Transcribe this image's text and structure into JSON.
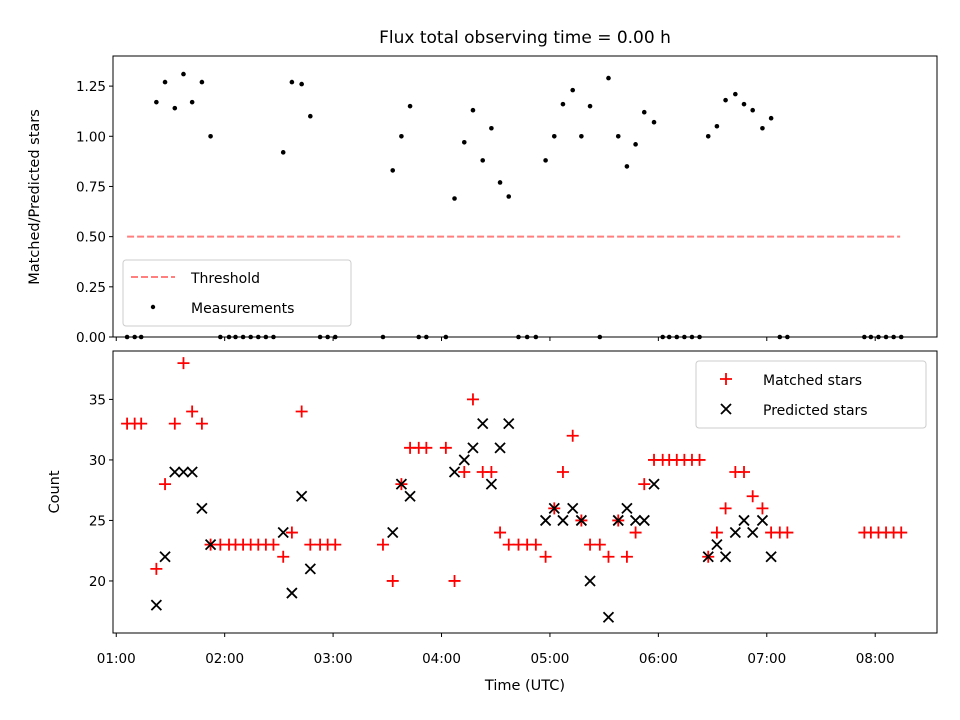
{
  "chart_data": [
    {
      "type": "scatter",
      "title": "Flux total observing time = 0.00 h",
      "xlabel": "",
      "ylabel": "Matched/Predicted stars",
      "xlim": [
        0.97,
        8.57
      ],
      "ylim": [
        0,
        1.4
      ],
      "yticks": [
        0.0,
        0.25,
        0.5,
        0.75,
        1.0,
        1.25
      ],
      "ytick_labels": [
        "0.00",
        "0.25",
        "0.50",
        "0.75",
        "1.00",
        "1.25"
      ],
      "legend_position": "lower-left",
      "threshold": {
        "name": "Threshold",
        "value": 0.5,
        "x_range": [
          1.1,
          8.23
        ],
        "color": "#ff7f7f"
      },
      "series": [
        {
          "name": "Measurements",
          "color": "#000000",
          "points": [
            [
              1.1,
              0
            ],
            [
              1.17,
              0
            ],
            [
              1.23,
              0
            ],
            [
              1.37,
              1.17
            ],
            [
              1.45,
              1.27
            ],
            [
              1.54,
              1.14
            ],
            [
              1.62,
              1.31
            ],
            [
              1.7,
              1.17
            ],
            [
              1.79,
              1.27
            ],
            [
              1.87,
              1.0
            ],
            [
              1.96,
              0
            ],
            [
              2.04,
              0
            ],
            [
              2.1,
              0
            ],
            [
              2.17,
              0
            ],
            [
              2.24,
              0
            ],
            [
              2.31,
              0
            ],
            [
              2.38,
              0
            ],
            [
              2.45,
              0
            ],
            [
              2.54,
              0.92
            ],
            [
              2.62,
              1.27
            ],
            [
              2.71,
              1.26
            ],
            [
              2.79,
              1.1
            ],
            [
              2.88,
              0
            ],
            [
              2.95,
              0
            ],
            [
              3.02,
              0
            ],
            [
              3.46,
              0
            ],
            [
              3.55,
              0.83
            ],
            [
              3.63,
              1.0
            ],
            [
              3.71,
              1.15
            ],
            [
              3.79,
              0
            ],
            [
              3.86,
              0
            ],
            [
              4.04,
              0
            ],
            [
              4.12,
              0.69
            ],
            [
              4.21,
              0.97
            ],
            [
              4.29,
              1.13
            ],
            [
              4.38,
              0.88
            ],
            [
              4.46,
              1.04
            ],
            [
              4.54,
              0.77
            ],
            [
              4.62,
              0.7
            ],
            [
              4.71,
              0
            ],
            [
              4.79,
              0
            ],
            [
              4.87,
              0
            ],
            [
              4.96,
              0.88
            ],
            [
              5.04,
              1.0
            ],
            [
              5.12,
              1.16
            ],
            [
              5.21,
              1.23
            ],
            [
              5.29,
              1.0
            ],
            [
              5.37,
              1.15
            ],
            [
              5.46,
              0
            ],
            [
              5.54,
              1.29
            ],
            [
              5.63,
              1.0
            ],
            [
              5.71,
              0.85
            ],
            [
              5.79,
              0.96
            ],
            [
              5.87,
              1.12
            ],
            [
              5.96,
              1.07
            ],
            [
              6.04,
              0
            ],
            [
              6.1,
              0
            ],
            [
              6.17,
              0
            ],
            [
              6.24,
              0
            ],
            [
              6.31,
              0
            ],
            [
              6.38,
              0
            ],
            [
              6.46,
              1.0
            ],
            [
              6.54,
              1.05
            ],
            [
              6.62,
              1.18
            ],
            [
              6.71,
              1.21
            ],
            [
              6.79,
              1.16
            ],
            [
              6.87,
              1.13
            ],
            [
              6.96,
              1.04
            ],
            [
              7.04,
              1.09
            ],
            [
              7.12,
              0
            ],
            [
              7.19,
              0
            ],
            [
              7.9,
              0
            ],
            [
              7.96,
              0
            ],
            [
              8.03,
              0
            ],
            [
              8.1,
              0
            ],
            [
              8.17,
              0
            ],
            [
              8.24,
              0
            ]
          ]
        }
      ]
    },
    {
      "type": "scatter",
      "title": "",
      "xlabel": "Time (UTC)",
      "ylabel": "Count",
      "xlim": [
        0.97,
        8.57
      ],
      "ylim": [
        15.7,
        39.0
      ],
      "xticks": [
        1,
        2,
        3,
        4,
        5,
        6,
        7,
        8
      ],
      "xtick_labels": [
        "01:00",
        "02:00",
        "03:00",
        "04:00",
        "05:00",
        "06:00",
        "07:00",
        "08:00"
      ],
      "yticks": [
        20,
        25,
        30,
        35
      ],
      "ytick_labels": [
        "20",
        "25",
        "30",
        "35"
      ],
      "legend_position": "upper-right",
      "series": [
        {
          "name": "Matched stars",
          "marker": "+",
          "color": "#ff0000",
          "points": [
            [
              1.1,
              33
            ],
            [
              1.17,
              33
            ],
            [
              1.23,
              33
            ],
            [
              1.37,
              21
            ],
            [
              1.45,
              28
            ],
            [
              1.54,
              33
            ],
            [
              1.62,
              38
            ],
            [
              1.7,
              34
            ],
            [
              1.79,
              33
            ],
            [
              1.87,
              23
            ],
            [
              1.96,
              23
            ],
            [
              2.04,
              23
            ],
            [
              2.1,
              23
            ],
            [
              2.17,
              23
            ],
            [
              2.24,
              23
            ],
            [
              2.31,
              23
            ],
            [
              2.38,
              23
            ],
            [
              2.45,
              23
            ],
            [
              2.54,
              22
            ],
            [
              2.62,
              24
            ],
            [
              2.71,
              34
            ],
            [
              2.79,
              23
            ],
            [
              2.88,
              23
            ],
            [
              2.95,
              23
            ],
            [
              3.02,
              23
            ],
            [
              3.46,
              23
            ],
            [
              3.55,
              20
            ],
            [
              3.63,
              28
            ],
            [
              3.71,
              31
            ],
            [
              3.79,
              31
            ],
            [
              3.86,
              31
            ],
            [
              4.04,
              31
            ],
            [
              4.12,
              20
            ],
            [
              4.21,
              29
            ],
            [
              4.29,
              35
            ],
            [
              4.38,
              29
            ],
            [
              4.46,
              29
            ],
            [
              4.54,
              24
            ],
            [
              4.62,
              23
            ],
            [
              4.71,
              23
            ],
            [
              4.79,
              23
            ],
            [
              4.87,
              23
            ],
            [
              4.96,
              22
            ],
            [
              5.04,
              26
            ],
            [
              5.12,
              29
            ],
            [
              5.21,
              32
            ],
            [
              5.29,
              25
            ],
            [
              5.37,
              23
            ],
            [
              5.46,
              23
            ],
            [
              5.54,
              22
            ],
            [
              5.63,
              25
            ],
            [
              5.71,
              22
            ],
            [
              5.79,
              24
            ],
            [
              5.87,
              28
            ],
            [
              5.96,
              30
            ],
            [
              6.04,
              30
            ],
            [
              6.1,
              30
            ],
            [
              6.17,
              30
            ],
            [
              6.24,
              30
            ],
            [
              6.31,
              30
            ],
            [
              6.38,
              30
            ],
            [
              6.46,
              22
            ],
            [
              6.54,
              24
            ],
            [
              6.62,
              26
            ],
            [
              6.71,
              29
            ],
            [
              6.79,
              29
            ],
            [
              6.87,
              27
            ],
            [
              6.96,
              26
            ],
            [
              7.04,
              24
            ],
            [
              7.12,
              24
            ],
            [
              7.19,
              24
            ],
            [
              7.9,
              24
            ],
            [
              7.96,
              24
            ],
            [
              8.03,
              24
            ],
            [
              8.1,
              24
            ],
            [
              8.17,
              24
            ],
            [
              8.24,
              24
            ]
          ]
        },
        {
          "name": "Predicted stars",
          "marker": "x",
          "color": "#000000",
          "points": [
            [
              1.37,
              18
            ],
            [
              1.45,
              22
            ],
            [
              1.54,
              29
            ],
            [
              1.62,
              29
            ],
            [
              1.7,
              29
            ],
            [
              1.79,
              26
            ],
            [
              1.87,
              23
            ],
            [
              2.54,
              24
            ],
            [
              2.62,
              19
            ],
            [
              2.71,
              27
            ],
            [
              2.79,
              21
            ],
            [
              3.55,
              24
            ],
            [
              3.63,
              28
            ],
            [
              3.71,
              27
            ],
            [
              4.12,
              29
            ],
            [
              4.21,
              30
            ],
            [
              4.29,
              31
            ],
            [
              4.38,
              33
            ],
            [
              4.46,
              28
            ],
            [
              4.54,
              31
            ],
            [
              4.62,
              33
            ],
            [
              4.96,
              25
            ],
            [
              5.04,
              26
            ],
            [
              5.12,
              25
            ],
            [
              5.21,
              26
            ],
            [
              5.29,
              25
            ],
            [
              5.37,
              20
            ],
            [
              5.54,
              17
            ],
            [
              5.63,
              25
            ],
            [
              5.71,
              26
            ],
            [
              5.79,
              25
            ],
            [
              5.87,
              25
            ],
            [
              5.96,
              28
            ],
            [
              6.46,
              22
            ],
            [
              6.54,
              23
            ],
            [
              6.62,
              22
            ],
            [
              6.71,
              24
            ],
            [
              6.79,
              25
            ],
            [
              6.87,
              24
            ],
            [
              6.96,
              25
            ],
            [
              7.04,
              22
            ]
          ]
        }
      ]
    }
  ]
}
